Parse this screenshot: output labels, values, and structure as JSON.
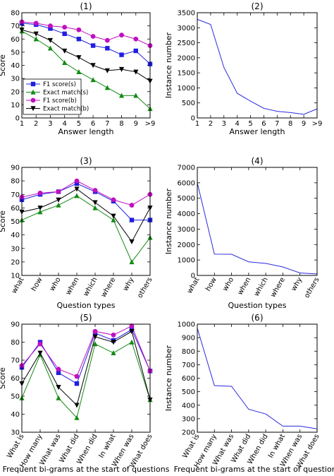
{
  "colors": {
    "f1_s": "#1f1fe0",
    "exact_s": "#138a13",
    "f1_b": "#c010c0",
    "exact_b": "#000000",
    "single": "#2a2adf"
  },
  "legend": [
    "F1 score(s)",
    "Exact match(s)",
    "F1 score(b)",
    "Exact match(b)"
  ],
  "chart_data": [
    {
      "type": "line",
      "title": "(1)",
      "xlabel": "Answer length",
      "ylabel": "Score",
      "categories": [
        "1",
        "2",
        "3",
        "4",
        "5",
        "6",
        "7",
        "8",
        "9",
        ">9"
      ],
      "ylim": [
        0,
        80
      ],
      "yticks": [
        0,
        10,
        20,
        30,
        40,
        50,
        60,
        70,
        80
      ],
      "legend_position": "lower-left",
      "series": [
        {
          "name": "F1 score(s)",
          "marker": "square",
          "values": [
            72,
            71,
            68,
            64,
            60,
            55,
            53,
            48,
            51,
            41
          ]
        },
        {
          "name": "Exact match(s)",
          "marker": "triangle",
          "values": [
            66,
            60,
            53,
            42,
            35,
            29,
            23,
            17,
            17,
            7
          ]
        },
        {
          "name": "F1 score(b)",
          "marker": "circle",
          "values": [
            73,
            72,
            70,
            69,
            67,
            62,
            59,
            63,
            60,
            55
          ]
        },
        {
          "name": "Exact match(b)",
          "marker": "triangle-down",
          "values": [
            67,
            64,
            59,
            51,
            46,
            40,
            36,
            37,
            35,
            28
          ]
        }
      ]
    },
    {
      "type": "line",
      "title": "(2)",
      "xlabel": "Answer length",
      "ylabel": "Instance number",
      "categories": [
        "1",
        "2",
        "3",
        "4",
        "5",
        "6",
        "7",
        "8",
        "9",
        ">9"
      ],
      "ylim": [
        0,
        3500
      ],
      "yticks": [
        0,
        500,
        1000,
        1500,
        2000,
        2500,
        3000,
        3500
      ],
      "series": [
        {
          "values": [
            3280,
            3110,
            1680,
            820,
            560,
            320,
            220,
            180,
            120,
            300
          ]
        }
      ]
    },
    {
      "type": "line",
      "title": "(3)",
      "xlabel": "Question types",
      "ylabel": "Score",
      "categories": [
        "what",
        "how",
        "who",
        "when",
        "which",
        "where",
        "why",
        "others"
      ],
      "ylim": [
        10,
        90
      ],
      "yticks": [
        10,
        20,
        30,
        40,
        50,
        60,
        70,
        80,
        90
      ],
      "series": [
        {
          "name": "F1 score(s)",
          "marker": "square",
          "values": [
            66,
            70,
            72,
            78,
            72,
            65,
            51,
            51
          ]
        },
        {
          "name": "Exact match(s)",
          "marker": "triangle",
          "values": [
            51,
            57,
            62,
            69,
            60,
            51,
            20,
            38
          ]
        },
        {
          "name": "F1 score(b)",
          "marker": "circle",
          "values": [
            68,
            71,
            72,
            80,
            73,
            66,
            62,
            70
          ]
        },
        {
          "name": "Exact match(b)",
          "marker": "triangle-down",
          "values": [
            57,
            60,
            66,
            74,
            64,
            54,
            35,
            60
          ]
        }
      ]
    },
    {
      "type": "line",
      "title": "(4)",
      "xlabel": "Question types",
      "ylabel": "Instance number",
      "categories": [
        "what",
        "how",
        "who",
        "when",
        "which",
        "where",
        "why",
        "others"
      ],
      "ylim": [
        0,
        7000
      ],
      "yticks": [
        0,
        1000,
        2000,
        3000,
        4000,
        5000,
        6000,
        7000
      ],
      "series": [
        {
          "values": [
            6000,
            1380,
            1370,
            880,
            780,
            550,
            160,
            100
          ]
        }
      ]
    },
    {
      "type": "line",
      "title": "(5)",
      "xlabel": "Frequent bi-grams at the start of questions",
      "ylabel": "Score",
      "categories": [
        "What is",
        "How many",
        "What was",
        "What did",
        "When did",
        "In what",
        "When was",
        "What does"
      ],
      "ylim": [
        30,
        90
      ],
      "yticks": [
        30,
        40,
        50,
        60,
        70,
        80,
        90
      ],
      "series": [
        {
          "name": "F1 score(s)",
          "marker": "square",
          "values": [
            66,
            80,
            63,
            57,
            85,
            81,
            87,
            64
          ]
        },
        {
          "name": "Exact match(s)",
          "marker": "triangle",
          "values": [
            49,
            73,
            49,
            38,
            79,
            74,
            80,
            48
          ]
        },
        {
          "name": "F1 score(b)",
          "marker": "circle",
          "values": [
            67,
            79,
            65,
            61,
            86,
            84,
            89,
            64
          ]
        },
        {
          "name": "Exact match(b)",
          "marker": "triangle-down",
          "values": [
            57,
            74,
            55,
            45,
            83,
            80,
            86,
            48
          ]
        }
      ]
    },
    {
      "type": "line",
      "title": "(6)",
      "xlabel": "Frequent bi-grams at the start of questions",
      "ylabel": "Instance number",
      "categories": [
        "What is",
        "How many",
        "What was",
        "What did",
        "When did",
        "In what",
        "When was",
        "What does"
      ],
      "ylim": [
        200,
        1000
      ],
      "yticks": [
        200,
        300,
        400,
        500,
        600,
        700,
        800,
        900,
        1000
      ],
      "series": [
        {
          "values": [
            970,
            545,
            540,
            370,
            335,
            245,
            245,
            225
          ]
        }
      ]
    }
  ]
}
